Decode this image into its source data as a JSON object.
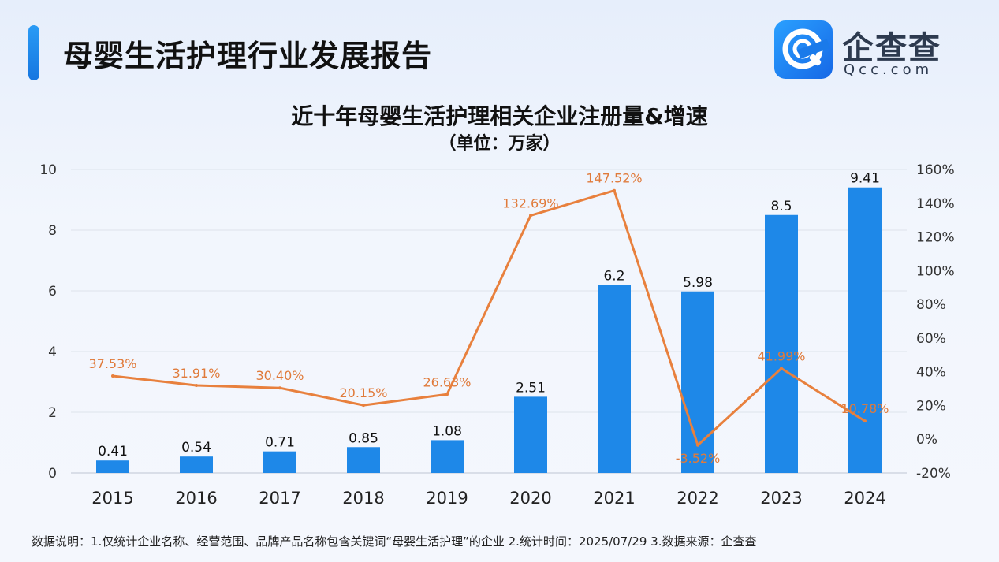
{
  "header": {
    "title": "母婴生活护理行业发展报告"
  },
  "brand": {
    "name": "企查查",
    "domain": "Qcc.com",
    "color": "#1e88f0"
  },
  "chart_data": {
    "type": "bar",
    "title": "近十年母婴生活护理相关企业注册量&增速",
    "subtitle": "（单位：万家）",
    "categories": [
      "2015",
      "2016",
      "2017",
      "2018",
      "2019",
      "2020",
      "2021",
      "2022",
      "2023",
      "2024"
    ],
    "series": [
      {
        "type": "bar",
        "axis": "left",
        "color": "#1e88e8",
        "values": [
          0.41,
          0.54,
          0.71,
          0.85,
          1.08,
          2.51,
          6.2,
          5.98,
          8.5,
          9.41
        ],
        "labels": [
          "0.41",
          "0.54",
          "0.71",
          "0.85",
          "1.08",
          "2.51",
          "6.2",
          "5.98",
          "8.5",
          "9.41"
        ]
      },
      {
        "type": "line",
        "axis": "right",
        "color": "#e8803d",
        "values": [
          37.53,
          31.91,
          30.4,
          20.15,
          26.63,
          132.69,
          147.52,
          -3.52,
          41.99,
          10.78
        ],
        "labels": [
          "37.53%",
          "31.91%",
          "30.40%",
          "20.15%",
          "26.63%",
          "132.69%",
          "147.52%",
          "-3.52%",
          "41.99%",
          "10.78%"
        ]
      }
    ],
    "ylim": [
      0,
      10
    ],
    "y_ticks": [
      "0",
      "2",
      "4",
      "6",
      "8",
      "10"
    ],
    "y2lim": [
      -20,
      160
    ],
    "y2_ticks": [
      "-20%",
      "0%",
      "20%",
      "40%",
      "60%",
      "80%",
      "100%",
      "120%",
      "140%",
      "160%"
    ],
    "grid": true
  },
  "footnote": "数据说明：1.仅统计企业名称、经营范围、品牌产品名称包含关键词“母婴生活护理”的企业   2.统计时间：2025/07/29   3.数据来源：企查查"
}
